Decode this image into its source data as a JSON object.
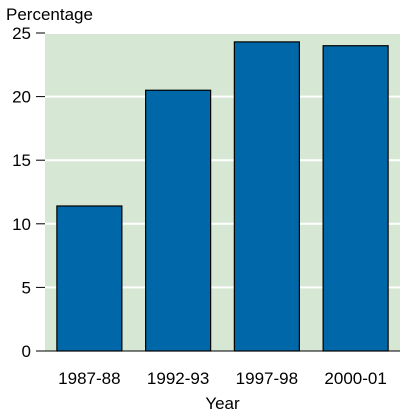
{
  "chart_data": {
    "type": "bar",
    "categories": [
      "1987-88",
      "1992-93",
      "1997-98",
      "2000-01"
    ],
    "values": [
      11.4,
      20.5,
      24.3,
      24.0
    ],
    "title": "",
    "xlabel": "Year",
    "ylabel": "Percentage",
    "ylim": [
      0,
      25
    ],
    "yticks": [
      0,
      5,
      10,
      15,
      20,
      25
    ],
    "grid": true,
    "colors": {
      "bar": "#0068a8",
      "bar_stroke": "#000000",
      "plot_background": "#d6e8d4",
      "grid": "#ffffff",
      "axis": "#000000"
    }
  }
}
